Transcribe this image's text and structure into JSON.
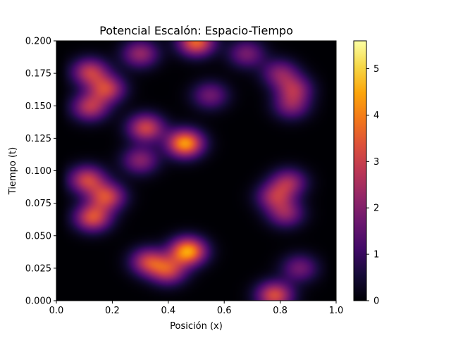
{
  "chart_data": {
    "type": "heatmap",
    "title": "Potencial Escalón: Espacio-Tiempo",
    "xlabel": "Posición (x)",
    "ylabel": "Tiempo (t)",
    "xlim": [
      0.0,
      1.0
    ],
    "ylim": [
      0.0,
      0.2
    ],
    "x_ticks": [
      "0.0",
      "0.2",
      "0.4",
      "0.6",
      "0.8",
      "1.0"
    ],
    "y_ticks": [
      "0.000",
      "0.025",
      "0.050",
      "0.075",
      "0.100",
      "0.125",
      "0.150",
      "0.175",
      "0.200"
    ],
    "colormap": "inferno",
    "colorbar": {
      "range": [
        0,
        5.6
      ],
      "ticks": [
        "0",
        "1",
        "2",
        "3",
        "4",
        "5"
      ]
    },
    "hotspots": [
      {
        "x": 0.47,
        "t": 0.038,
        "value": 4.4
      },
      {
        "x": 0.46,
        "t": 0.121,
        "value": 4.3
      },
      {
        "x": 0.5,
        "t": 0.199,
        "value": 3.6
      },
      {
        "x": 0.78,
        "t": 0.004,
        "value": 3.2
      },
      {
        "x": 0.13,
        "t": 0.064,
        "value": 3.2
      },
      {
        "x": 0.18,
        "t": 0.08,
        "value": 3.0
      },
      {
        "x": 0.11,
        "t": 0.093,
        "value": 2.9
      },
      {
        "x": 0.18,
        "t": 0.163,
        "value": 2.8
      },
      {
        "x": 0.12,
        "t": 0.176,
        "value": 2.7
      },
      {
        "x": 0.12,
        "t": 0.149,
        "value": 2.6
      },
      {
        "x": 0.32,
        "t": 0.133,
        "value": 3.0
      },
      {
        "x": 0.33,
        "t": 0.03,
        "value": 2.8
      },
      {
        "x": 0.4,
        "t": 0.023,
        "value": 2.7
      },
      {
        "x": 0.83,
        "t": 0.091,
        "value": 2.2
      },
      {
        "x": 0.78,
        "t": 0.08,
        "value": 2.2
      },
      {
        "x": 0.82,
        "t": 0.067,
        "value": 2.0
      },
      {
        "x": 0.85,
        "t": 0.163,
        "value": 2.1
      },
      {
        "x": 0.8,
        "t": 0.175,
        "value": 1.9
      },
      {
        "x": 0.84,
        "t": 0.15,
        "value": 1.8
      },
      {
        "x": 0.87,
        "t": 0.025,
        "value": 1.7
      },
      {
        "x": 0.3,
        "t": 0.19,
        "value": 2.2
      },
      {
        "x": 0.68,
        "t": 0.19,
        "value": 1.8
      },
      {
        "x": 0.55,
        "t": 0.158,
        "value": 1.7
      },
      {
        "x": 0.3,
        "t": 0.108,
        "value": 2.0
      }
    ]
  }
}
